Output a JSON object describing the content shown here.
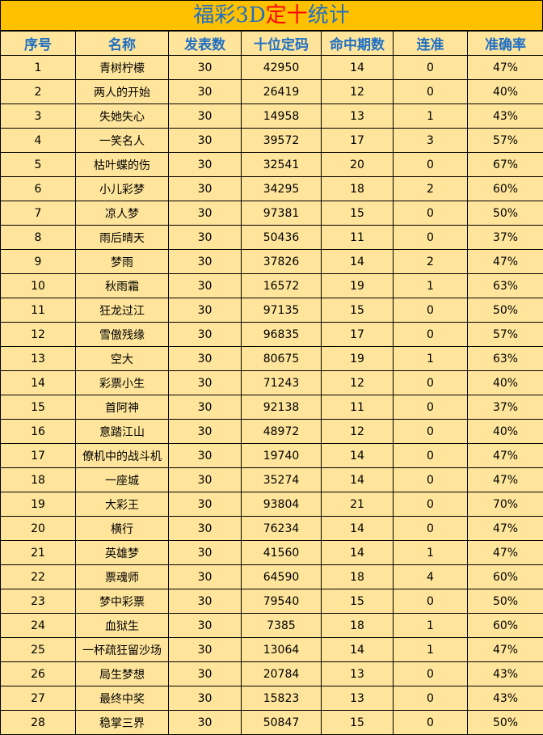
{
  "title": [
    "福彩3D",
    "定十",
    "统计"
  ],
  "table": {
    "header": [
      "序号",
      "名称",
      "发表数",
      "十位定码",
      "命中期数",
      "连准",
      "准确率"
    ],
    "rows": [
      [
        "1",
        "青树柠檬",
        "30",
        "42950",
        "14",
        "0",
        "47%"
      ],
      [
        "2",
        "两人的开始",
        "30",
        "26419",
        "12",
        "0",
        "40%"
      ],
      [
        "3",
        "失她失心",
        "30",
        "14958",
        "13",
        "1",
        "43%"
      ],
      [
        "4",
        "一笑名人",
        "30",
        "39572",
        "17",
        "3",
        "57%"
      ],
      [
        "5",
        "枯叶蝶的伤",
        "30",
        "32541",
        "20",
        "0",
        "67%"
      ],
      [
        "6",
        "小儿彩梦",
        "30",
        "34295",
        "18",
        "2",
        "60%"
      ],
      [
        "7",
        "凉人梦",
        "30",
        "97381",
        "15",
        "0",
        "50%"
      ],
      [
        "8",
        "雨后晴天",
        "30",
        "50436",
        "11",
        "0",
        "37%"
      ],
      [
        "9",
        "梦雨",
        "30",
        "37826",
        "14",
        "2",
        "47%"
      ],
      [
        "10",
        "秋雨霜",
        "30",
        "16572",
        "19",
        "1",
        "63%"
      ],
      [
        "11",
        "狂龙过江",
        "30",
        "97135",
        "15",
        "0",
        "50%"
      ],
      [
        "12",
        "雪傲残缘",
        "30",
        "96835",
        "17",
        "0",
        "57%"
      ],
      [
        "13",
        "空大",
        "30",
        "80675",
        "19",
        "1",
        "63%"
      ],
      [
        "14",
        "彩票小生",
        "30",
        "71243",
        "12",
        "0",
        "40%"
      ],
      [
        "15",
        "首阿神",
        "30",
        "92138",
        "11",
        "0",
        "37%"
      ],
      [
        "16",
        "意踏江山",
        "30",
        "48972",
        "12",
        "0",
        "40%"
      ],
      [
        "17",
        "僚机中的战斗机",
        "30",
        "19740",
        "14",
        "0",
        "47%"
      ],
      [
        "18",
        "一座城",
        "30",
        "35274",
        "14",
        "0",
        "47%"
      ],
      [
        "19",
        "大彩王",
        "30",
        "93804",
        "21",
        "0",
        "70%"
      ],
      [
        "20",
        "横行",
        "30",
        "76234",
        "14",
        "0",
        "47%"
      ],
      [
        "21",
        "英雄梦",
        "30",
        "41560",
        "14",
        "1",
        "47%"
      ],
      [
        "22",
        "票魂师",
        "30",
        "64590",
        "18",
        "4",
        "60%"
      ],
      [
        "23",
        "梦中彩票",
        "30",
        "79540",
        "15",
        "0",
        "50%"
      ],
      [
        "24",
        "血狱生",
        "30",
        "7385",
        "18",
        "1",
        "60%"
      ],
      [
        "25",
        "一杯疏狂留沙场",
        "30",
        "13064",
        "14",
        "1",
        "47%"
      ],
      [
        "26",
        "局生梦想",
        "30",
        "20784",
        "13",
        "0",
        "43%"
      ],
      [
        "27",
        "最终中奖",
        "30",
        "15823",
        "13",
        "0",
        "43%"
      ],
      [
        "28",
        "稳掌三界",
        "30",
        "50847",
        "15",
        "0",
        "50%"
      ]
    ]
  }
}
